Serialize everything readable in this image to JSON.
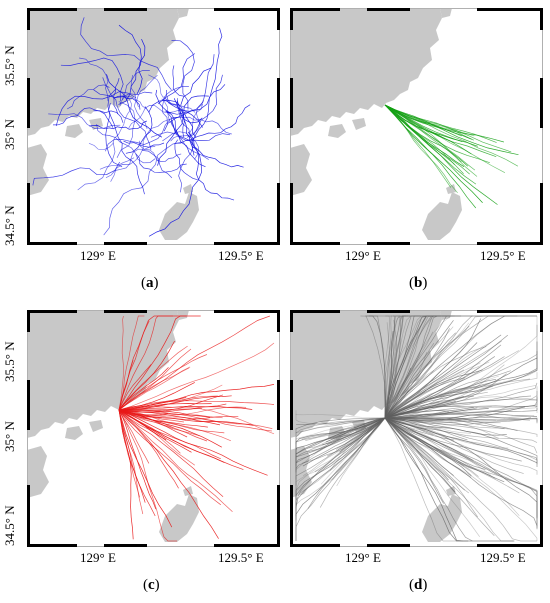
{
  "panels": [
    {
      "id": "a",
      "caption_open": "(",
      "caption_letter": "a",
      "caption_close": ")",
      "track_color": "#1010e0",
      "n_tracks": 70,
      "label": "",
      "label_color": ""
    },
    {
      "id": "b",
      "caption_open": "(",
      "caption_letter": "b",
      "caption_close": ")",
      "track_color": "#14a014",
      "n_tracks": 30,
      "label": "",
      "label_color": ""
    },
    {
      "id": "c",
      "caption_open": "(",
      "caption_letter": "c",
      "caption_close": ")",
      "track_color": "#e81818",
      "n_tracks": 70,
      "label": "",
      "label_color": ""
    },
    {
      "id": "d",
      "caption_open": "(",
      "caption_letter": "d",
      "caption_close": ")",
      "track_color": "#606060",
      "n_tracks": 220,
      "label": "",
      "label_color": ""
    }
  ],
  "axis": {
    "lat_labels": [
      "35.5° N",
      "35° N",
      "34.5° N"
    ],
    "lon_labels": [
      "129° E",
      "129.5° E"
    ]
  },
  "colors": {
    "land": "#c8c8c8",
    "sea": "#ffffff",
    "frame": "#000000"
  }
}
